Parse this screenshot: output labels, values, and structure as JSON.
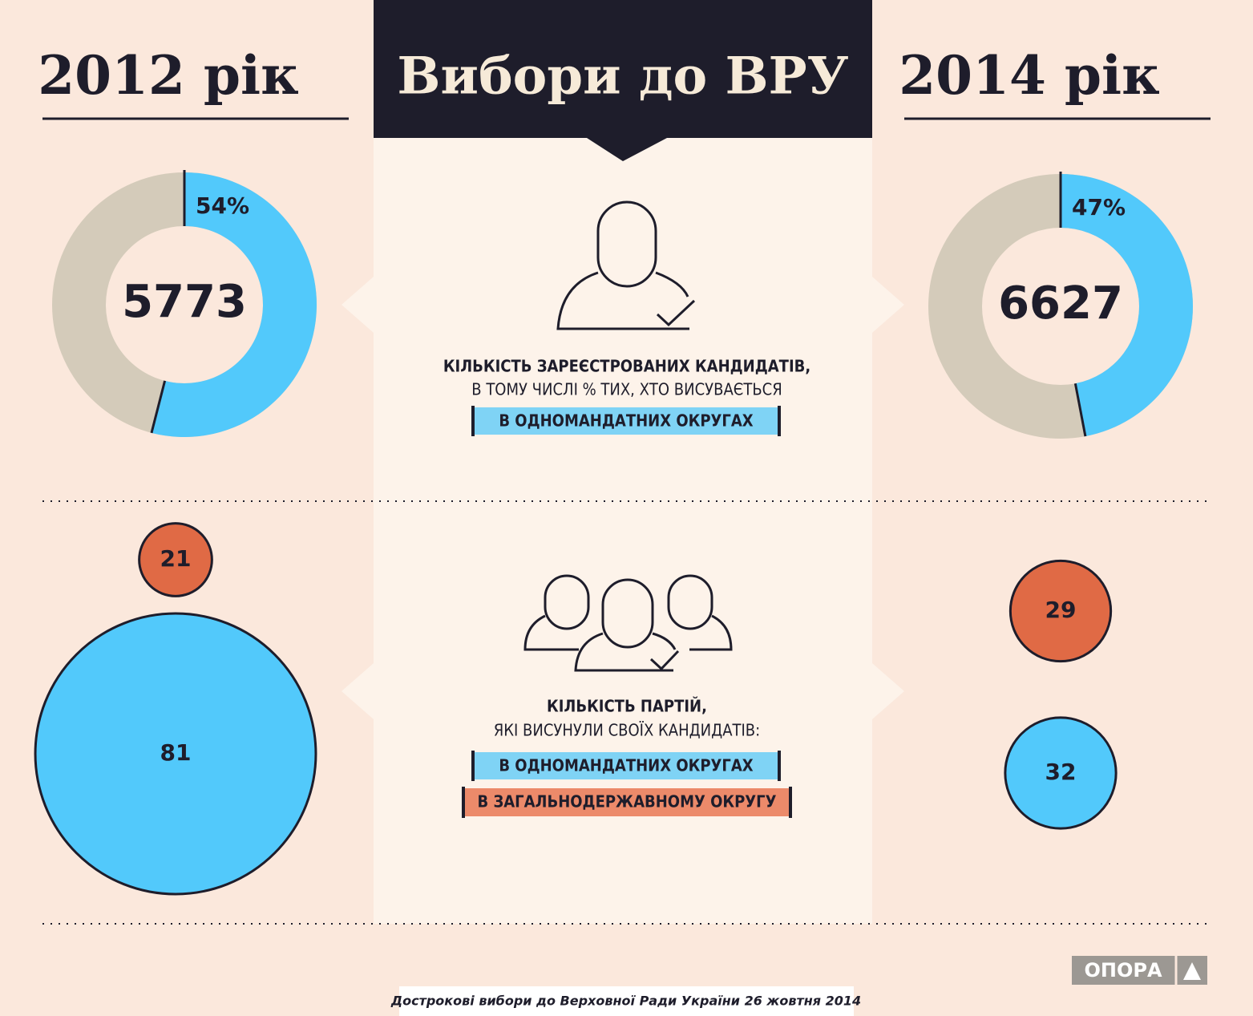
{
  "title": "Вибори до ВРУ",
  "years": [
    "2012 рік",
    "2014 рік"
  ],
  "candidates_caption": {
    "line1": "КІЛЬКІСТЬ ЗАРЕЄСТРОВАНИХ КАНДИДАТІВ,",
    "line2": "В ТОМУ ЧИСЛІ % ТИХ, ХТО ВИСУВАЄТЬСЯ",
    "tag": "В ОДНОМАНДАТНИХ ОКРУГАХ"
  },
  "parties_caption": {
    "line1": "КІЛЬКІСТЬ ПАРТІЙ,",
    "line2": "ЯКІ ВИСУНУЛИ СВОЇХ КАНДИДАТІВ:",
    "tags": [
      "В ОДНОМАНДАТНИХ ОКРУГАХ",
      "В ЗАГАЛЬНОДЕРЖАВНОМУ ОКРУГУ"
    ]
  },
  "footer": "Дострокові вибори до Верховної Ради України 26 жовтня 2014",
  "logo": "ОПОРА",
  "chart_data": [
    {
      "type": "donut",
      "total": 5773,
      "values": [
        54
      ],
      "value_labels": [
        "54%"
      ],
      "color": "#52c9fb",
      "rest_color": "#d4cbba"
    },
    {
      "type": "donut",
      "total": 6627,
      "values": [
        47
      ],
      "value_labels": [
        "47%"
      ],
      "color": "#52c9fb",
      "rest_color": "#d4cbba"
    },
    {
      "type": "bubble",
      "values": [
        21,
        81
      ],
      "colors": [
        "#e06a45",
        "#52c9fb"
      ]
    },
    {
      "type": "bubble",
      "values": [
        29,
        32
      ],
      "colors": [
        "#e06a45",
        "#52c9fb"
      ]
    }
  ]
}
